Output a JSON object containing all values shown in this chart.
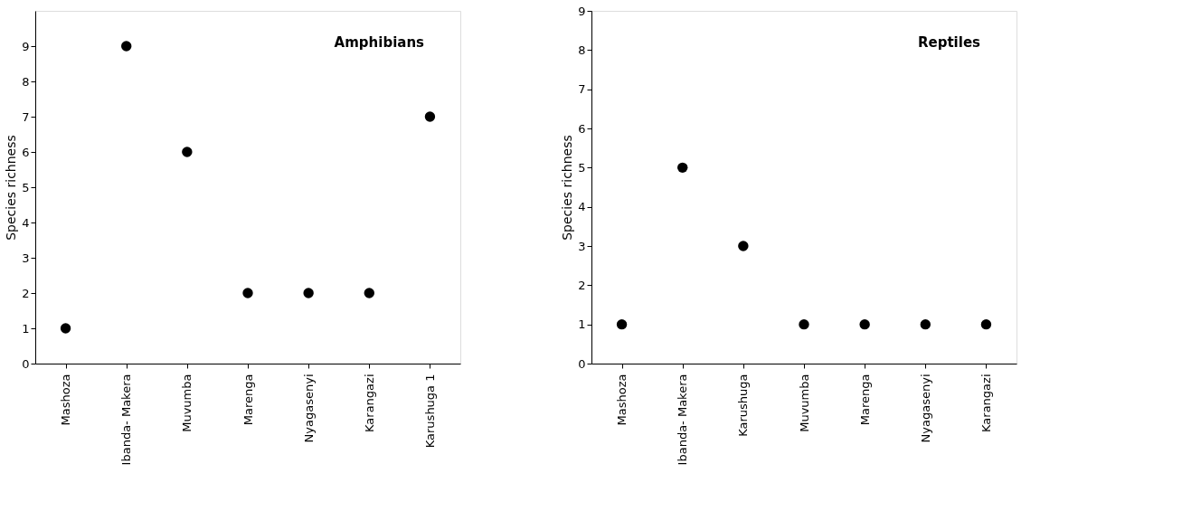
{
  "chart_data": [
    {
      "type": "scatter",
      "annotations": [
        "Amphibians"
      ],
      "ylabel": "Species richness",
      "marker": "circle",
      "categories": [
        "Mashoza",
        "Ibanda- Makera",
        "Muvumba",
        "Marenga",
        "Nyagasenyi",
        "Karangazi",
        "Karushuga 1"
      ],
      "series": [
        {
          "color": "#000000",
          "values": [
            1,
            9,
            6,
            2,
            2,
            2,
            7
          ]
        }
      ],
      "ylim": [
        0,
        10
      ],
      "yticks": [
        0,
        1,
        2,
        3,
        4,
        5,
        6,
        7,
        8,
        9
      ]
    },
    {
      "type": "scatter",
      "annotations": [
        "Reptiles"
      ],
      "ylabel": "Species richness",
      "marker": "circle",
      "categories": [
        "Mashoza",
        "Ibanda- Makera",
        "Karushuga",
        "Muvumba",
        "Marenga",
        "Nyagasenyi",
        "Karangazi"
      ],
      "series": [
        {
          "color": "#000000",
          "values": [
            1,
            5,
            3,
            1,
            1,
            1,
            1
          ]
        }
      ],
      "ylim": [
        0,
        9
      ],
      "yticks": [
        0,
        1,
        2,
        3,
        4,
        5,
        6,
        7,
        8,
        9
      ]
    }
  ]
}
